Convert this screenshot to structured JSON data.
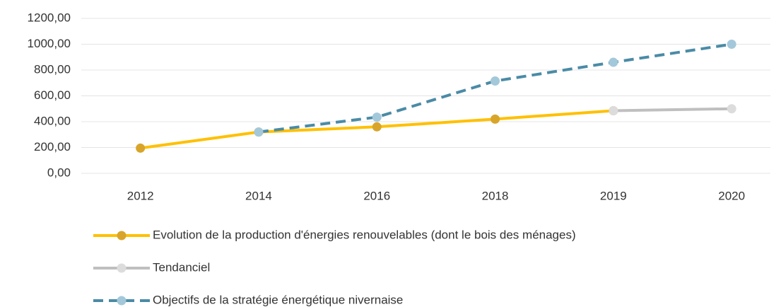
{
  "chart_data": {
    "type": "line",
    "categories": [
      "2012",
      "2014",
      "2016",
      "2018",
      "2019",
      "2020"
    ],
    "series": [
      {
        "name": "Evolution de la production d'énergies renouvelables (dont le bois des ménages)",
        "color": "#ffc000",
        "marker_color": "#d8a52a",
        "values": [
          195,
          320,
          360,
          420,
          485,
          null
        ]
      },
      {
        "name": "Tendanciel",
        "color": "#bfbfbf",
        "marker_color": "#dcdcdc",
        "values": [
          null,
          null,
          null,
          null,
          485,
          500
        ]
      },
      {
        "name": "Objectifs de la stratégie énergétique nivernaise",
        "color": "#4a8ba6",
        "marker_color": "#a3c8da",
        "dashed": true,
        "values": [
          null,
          320,
          435,
          715,
          860,
          1000
        ]
      }
    ],
    "ylim": [
      0,
      1200
    ],
    "yticks": [
      {
        "value": 0,
        "label": "0,00"
      },
      {
        "value": 200,
        "label": "200,00"
      },
      {
        "value": 400,
        "label": "400,00"
      },
      {
        "value": 600,
        "label": "600,00"
      },
      {
        "value": 800,
        "label": "800,00"
      },
      {
        "value": 1000,
        "label": "1000,00"
      },
      {
        "value": 1200,
        "label": "1200,00"
      }
    ],
    "grid": true,
    "legend": "bottom"
  }
}
